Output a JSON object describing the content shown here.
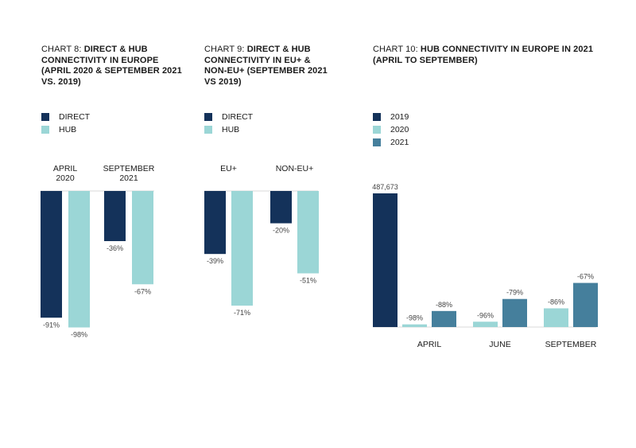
{
  "colors": {
    "direct": "#14325a",
    "hub": "#9bd6d6",
    "y2019": "#14325a",
    "y2020": "#9bd6d6",
    "y2021": "#457f9c"
  },
  "chart_data": [
    {
      "type": "bar",
      "title_lead": "CHART 8: ",
      "title_bold": "DIRECT & HUB CONNECTIVITY IN EUROPE (APRIL 2020 & SEPTEMBER 2021 VS. 2019)",
      "categories": [
        "APRIL 2020",
        "SEPTEMBER 2021"
      ],
      "category_lines": [
        [
          "APRIL",
          "2020"
        ],
        [
          "SEPTEMBER",
          "2021"
        ]
      ],
      "series": [
        {
          "name": "DIRECT",
          "values": [
            -91,
            -36
          ],
          "labels": [
            "-91%",
            "-36%"
          ]
        },
        {
          "name": "HUB",
          "values": [
            -98,
            -67
          ],
          "labels": [
            "-98%",
            "-67%"
          ]
        }
      ],
      "unit": "%",
      "ylim": [
        -100,
        0
      ],
      "legend": "top-left"
    },
    {
      "type": "bar",
      "title_lead": "CHART 9: ",
      "title_bold": "DIRECT & HUB CONNECTIVITY IN EU+ & NON-EU+ (SEPTEMBER 2021 VS 2019)",
      "categories": [
        "EU+",
        "NON-EU+"
      ],
      "category_lines": [
        [
          "EU+"
        ],
        [
          "NON-EU+"
        ]
      ],
      "series": [
        {
          "name": "DIRECT",
          "values": [
            -39,
            -20
          ],
          "labels": [
            "-39%",
            "-20%"
          ]
        },
        {
          "name": "HUB",
          "values": [
            -71,
            -51
          ],
          "labels": [
            "-71%",
            "-51%"
          ]
        }
      ],
      "unit": "%",
      "ylim": [
        -100,
        0
      ],
      "legend": "top-left"
    },
    {
      "type": "bar",
      "title_lead": "CHART 10: ",
      "title_bold": "HUB CONNECTIVITY IN EUROPE IN 2021 (APRIL TO SEPTEMBER)",
      "baseline_value": 487673,
      "baseline_label": "487,673",
      "categories": [
        "APRIL",
        "JUNE",
        "SEPTEMBER"
      ],
      "series": [
        {
          "name": "2020",
          "values": [
            -98,
            -96,
            -86
          ],
          "labels": [
            "-98%",
            "-96%",
            "-86%"
          ]
        },
        {
          "name": "2021",
          "values": [
            -88,
            -79,
            -67
          ],
          "labels": [
            "-88%",
            "-79%",
            "-67%"
          ]
        }
      ],
      "legend_entries": [
        "2019",
        "2020",
        "2021"
      ],
      "unit": "% vs 2019",
      "legend": "top-left"
    }
  ]
}
